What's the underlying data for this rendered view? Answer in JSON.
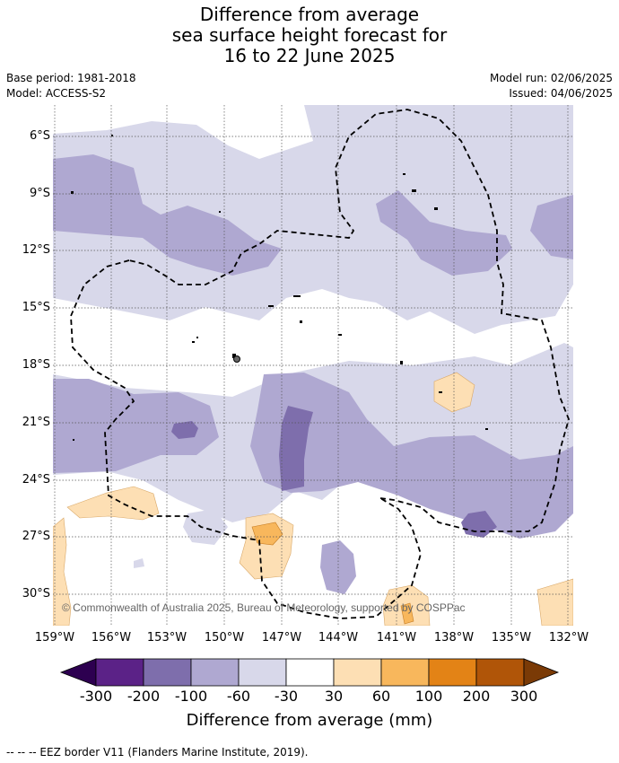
{
  "title": {
    "line1": "Difference from average",
    "line2": "sea surface height forecast for",
    "line3": "16 to 22 June 2025"
  },
  "meta": {
    "base_period": "Base period: 1981-2018",
    "model": "Model: ACCESS-S2",
    "model_run": "Model run: 02/06/2025",
    "issued": "Issued: 04/06/2025"
  },
  "map": {
    "copyright": "© Commonwealth of Australia 2025, Bureau of Meteorology, supported by COSPPac",
    "lat_labels": [
      "6°S",
      "9°S",
      "12°S",
      "15°S",
      "18°S",
      "21°S",
      "24°S",
      "27°S",
      "30°S"
    ],
    "lon_labels": [
      "159°W",
      "156°W",
      "153°W",
      "150°W",
      "147°W",
      "144°W",
      "141°W",
      "138°W",
      "135°W",
      "132°W"
    ],
    "colors": {
      "lt_-300": "#2d0050",
      "-300_-200": "#5b2287",
      "-200_-100": "#7e6eac",
      "-100_-60": "#afa8d1",
      "-60_-30": "#d8d8ea",
      "-30_30": "#ffffff",
      "30_60": "#fddfb4",
      "60_100": "#f8b75c",
      "100_200": "#e38316",
      "200_300": "#b05508",
      "gt_300": "#7a3a06"
    }
  },
  "colorbar": {
    "ticks": [
      "-300",
      "-200",
      "-100",
      "-60",
      "-30",
      "30",
      "60",
      "100",
      "200",
      "300"
    ],
    "label": "Difference from average (mm)"
  },
  "footnote": "-- -- -- EEZ border V11 (Flanders Marine Institute, 2019)."
}
